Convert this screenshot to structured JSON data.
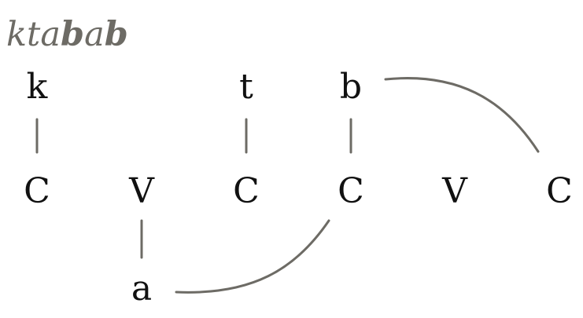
{
  "word": {
    "segments": [
      {
        "text": "kta",
        "bold": false
      },
      {
        "text": "b",
        "bold": true
      },
      {
        "text": "a",
        "bold": false
      },
      {
        "text": "b",
        "bold": true
      }
    ]
  },
  "consonant_tier": {
    "k": "k",
    "t": "t",
    "b": "b"
  },
  "skeleton": [
    "C",
    "V",
    "C",
    "C",
    "V",
    "C"
  ],
  "vowel_tier": {
    "a": "a"
  },
  "colors": {
    "line": "#6d6b65",
    "text": "#111111",
    "gloss": "#6d6b65"
  }
}
